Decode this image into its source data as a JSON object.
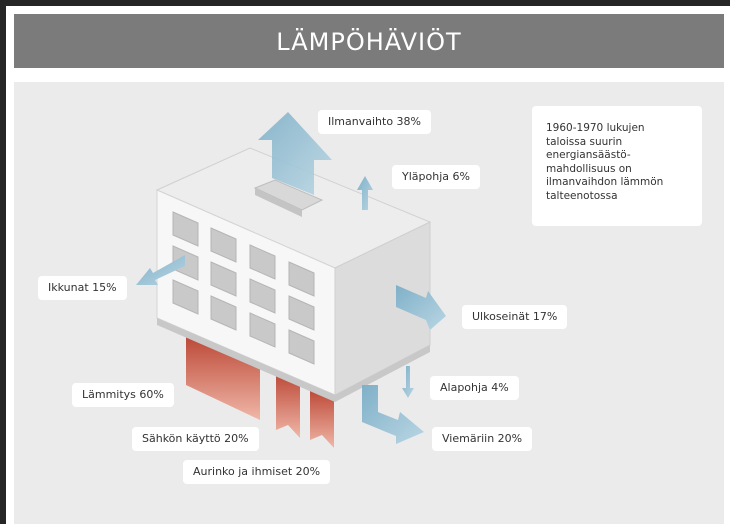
{
  "title": "LÄMPÖHÄVIÖT",
  "labels": [
    "Ilmanvaihto 38%",
    "Yläpohja 6%",
    "Ikkunat 15%",
    "Ulkoseinät 17%",
    "Lämmitys 60%",
    "Alapohja 4%",
    "Sähkön käyttö 20%",
    "Viemäriin 20%",
    "Aurinko ja ihmiset 20%"
  ],
  "note": [
    "1960-1970 lukujen",
    "taloissa suurin",
    "energiansäästö-",
    "mahdollisuus on",
    "ilmanvaihdon lämmön",
    "talteenotossa"
  ]
}
